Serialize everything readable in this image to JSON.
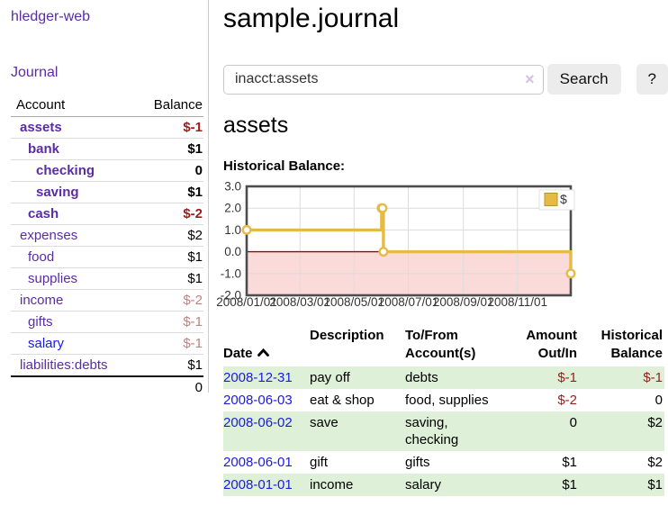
{
  "app": {
    "brand": "hledger-web",
    "nav_journal": "Journal"
  },
  "sidebar": {
    "headers": {
      "account": "Account",
      "balance": "Balance"
    },
    "accounts": [
      {
        "name": "assets",
        "balance": "$-1"
      },
      {
        "name": "bank",
        "balance": "$1"
      },
      {
        "name": "checking",
        "balance": "0"
      },
      {
        "name": "saving",
        "balance": "$1"
      },
      {
        "name": "cash",
        "balance": "$-2"
      },
      {
        "name": "expenses",
        "balance": "$2"
      },
      {
        "name": "food",
        "balance": "$1"
      },
      {
        "name": "supplies",
        "balance": "$1"
      },
      {
        "name": "income",
        "balance": "$-2"
      },
      {
        "name": "gifts",
        "balance": "$-1"
      },
      {
        "name": "salary",
        "balance": "$-1"
      },
      {
        "name": "liabilities:debts",
        "balance": "$1"
      }
    ],
    "total": "0"
  },
  "main": {
    "title": "sample.journal",
    "search": {
      "value": "inacct:assets",
      "clear_icon": "×",
      "search_button": "Search",
      "help_button": "?"
    },
    "account_heading": "assets",
    "chart_heading": "Historical Balance:"
  },
  "chart_data": {
    "type": "line",
    "step": true,
    "title": "Historical Balance:",
    "x_range": [
      "2008-01-01",
      "2008-12-31"
    ],
    "ylim": [
      -2,
      3
    ],
    "yticks": [
      3,
      2,
      1,
      0,
      -1,
      -2
    ],
    "ytick_labels": [
      "3.0",
      "2.0",
      "1.0",
      "0.0",
      "-1.0",
      "-2.0"
    ],
    "xticks": [
      {
        "pos": "2008-01-01",
        "label": "2008/01/01"
      },
      {
        "pos": "2008-03-01",
        "label": "2008/03/01"
      },
      {
        "pos": "2008-05-01",
        "label": "2008/05/01"
      },
      {
        "pos": "2008-07-01",
        "label": "2008/07/01"
      },
      {
        "pos": "2008-09-01",
        "label": "2008/09/01"
      },
      {
        "pos": "2008-11-01",
        "label": "2008/11/01"
      }
    ],
    "series": [
      {
        "name": "$",
        "points": [
          [
            "2008-01-01",
            1
          ],
          [
            "2008-06-01",
            2
          ],
          [
            "2008-06-02",
            2
          ],
          [
            "2008-06-03",
            0
          ],
          [
            "2008-12-31",
            -1
          ]
        ]
      }
    ],
    "legend_position": "top-right",
    "negative_region_shaded": true,
    "grid": true
  },
  "register": {
    "headers": {
      "date": "Date",
      "description": "Description",
      "tofrom": "To/From\nAccount(s)",
      "amount": "Amount\nOut/In",
      "balance": "Historical\nBalance"
    },
    "rows": [
      {
        "date": "2008-12-31",
        "description": "pay off",
        "accounts": "debts",
        "amount": "$-1",
        "balance": "$-1"
      },
      {
        "date": "2008-06-03",
        "description": "eat & shop",
        "accounts": "food, supplies",
        "amount": "$-2",
        "balance": "0"
      },
      {
        "date": "2008-06-02",
        "description": "save",
        "accounts": "saving, checking",
        "amount": "0",
        "balance": "$2"
      },
      {
        "date": "2008-06-01",
        "description": "gift",
        "accounts": "gifts",
        "amount": "$1",
        "balance": "$2"
      },
      {
        "date": "2008-01-01",
        "description": "income",
        "accounts": "salary",
        "amount": "$1",
        "balance": "$1"
      }
    ]
  },
  "colors": {
    "link-purple": "#5a2ca6",
    "link-blue": "#1b1ae1",
    "negative-strong": "#9c1b1b",
    "negative-faded": "#c28080",
    "row-green": "#dff0d8",
    "chart-line-gold": "#e6bb43",
    "chart-negative-fill": "#fbdada",
    "chart-zero-line": "#a40000"
  }
}
